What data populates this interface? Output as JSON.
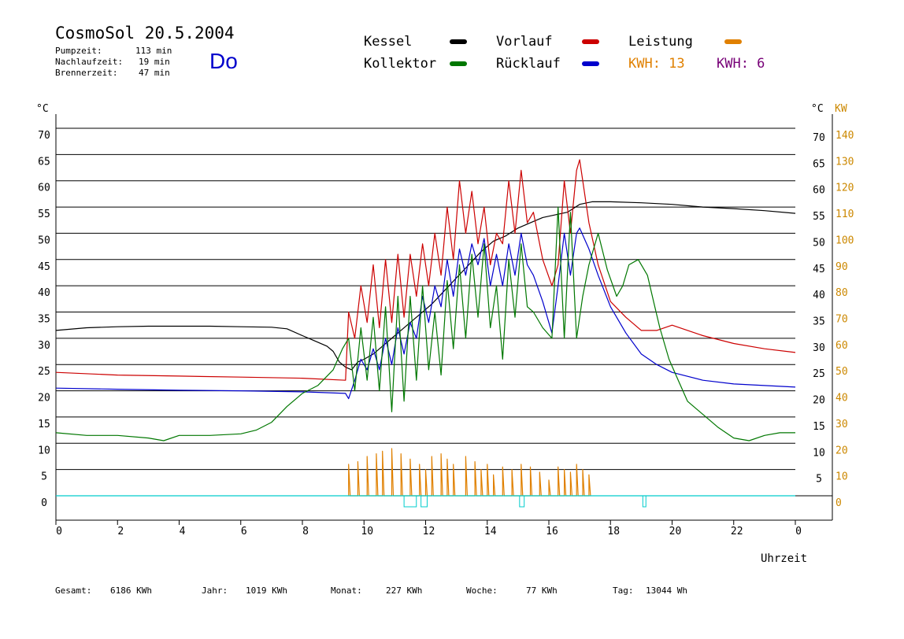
{
  "header": {
    "title": "CosmoSol 20.5.2004",
    "day": "Do",
    "stats": [
      {
        "label": "Pumpzeit:",
        "value": "113 min"
      },
      {
        "label": "Nachlaufzeit:",
        "value": "19 min"
      },
      {
        "label": "Brennerzeit:",
        "value": "47 min"
      }
    ]
  },
  "legend": {
    "kessel": "Kessel",
    "kollektor": "Kollektor",
    "vorlauf": "Vorlauf",
    "ruecklauf": "Rücklauf",
    "leistung": "Leistung",
    "kwh1": "KWH: 13",
    "kwh2": "KWH: 6"
  },
  "colors": {
    "kessel": "#000000",
    "kollektor": "#007700",
    "vorlauf": "#cc0000",
    "ruecklauf": "#0000cc",
    "leistung": "#e08000",
    "kwh2": "#770077",
    "pump": "#00cccc",
    "kw_axis": "#cc8800"
  },
  "footer": [
    {
      "label": "Gesamt:",
      "value": "6186 KWh"
    },
    {
      "label": "Jahr:",
      "value": "1019 KWh"
    },
    {
      "label": "Monat:",
      "value": "227 KWh"
    },
    {
      "label": "Woche:",
      "value": "77 KWh"
    },
    {
      "label": "Tag:",
      "value": "13044 Wh"
    }
  ],
  "chart_data": {
    "type": "line",
    "xlabel": "Uhrzeit",
    "ylabel_left": "°C",
    "ylabel_right": "°C",
    "ylabel_right2": "KW",
    "xlim": [
      0,
      24
    ],
    "ylim": [
      0,
      70
    ],
    "x_ticks": [
      "0",
      "2",
      "4",
      "6",
      "8",
      "10",
      "12",
      "14",
      "16",
      "18",
      "20",
      "22",
      "0"
    ],
    "y_ticks": [
      "0",
      "5",
      "10",
      "15",
      "20",
      "25",
      "30",
      "35",
      "40",
      "45",
      "50",
      "55",
      "60",
      "65",
      "70"
    ],
    "y_ticks_right": [
      "5",
      "10",
      "15",
      "20",
      "25",
      "30",
      "35",
      "40",
      "45",
      "50",
      "55",
      "60",
      "65",
      "70"
    ],
    "kw_ticks": [
      "0",
      "10",
      "20",
      "30",
      "40",
      "50",
      "60",
      "70",
      "80",
      "90",
      "100",
      "110",
      "120",
      "130",
      "140"
    ],
    "grid": true,
    "series": [
      {
        "name": "Kessel",
        "x": [
          0,
          1,
          2,
          3,
          4,
          5,
          6,
          7,
          7.5,
          8,
          8.4,
          8.8,
          9.0,
          9.2,
          9.4,
          9.6,
          9.8,
          10.0,
          10.3,
          10.6,
          11.0,
          11.4,
          11.8,
          12.2,
          12.6,
          13.0,
          13.4,
          13.8,
          14.2,
          14.6,
          15.0,
          15.4,
          15.8,
          16.2,
          16.6,
          17.0,
          17.4,
          18.0,
          19.0,
          20.0,
          21.0,
          22.0,
          23.0,
          24.0
        ],
        "y": [
          31.5,
          32,
          32.2,
          32.3,
          32.3,
          32.3,
          32.2,
          32.1,
          31.8,
          30.5,
          29.5,
          28.5,
          27.5,
          25.5,
          24.5,
          24.0,
          25.5,
          26.0,
          27.0,
          28.5,
          30.5,
          32.5,
          34.5,
          36.5,
          39.0,
          41.5,
          44.0,
          46.5,
          48.5,
          49.5,
          51.0,
          52.0,
          53.0,
          53.5,
          54.0,
          55.5,
          56.0,
          56.0,
          55.8,
          55.5,
          55.0,
          54.7,
          54.3,
          53.8
        ]
      },
      {
        "name": "Vorlauf",
        "x": [
          0,
          2,
          4,
          6,
          8,
          9.4,
          9.5,
          9.7,
          9.9,
          10.1,
          10.3,
          10.5,
          10.7,
          10.9,
          11.1,
          11.3,
          11.5,
          11.7,
          11.9,
          12.1,
          12.3,
          12.5,
          12.7,
          12.9,
          13.1,
          13.3,
          13.5,
          13.7,
          13.9,
          14.1,
          14.3,
          14.5,
          14.7,
          14.9,
          15.1,
          15.3,
          15.5,
          15.8,
          16.1,
          16.3,
          16.5,
          16.7,
          16.9,
          17.0,
          17.3,
          17.6,
          18.0,
          18.5,
          19.0,
          19.5,
          20.0,
          21.0,
          22.0,
          23.0,
          24.0
        ],
        "y": [
          23.5,
          23.0,
          22.8,
          22.6,
          22.4,
          22.0,
          35.0,
          30.0,
          40.0,
          33.0,
          44.0,
          32.0,
          45.0,
          33.0,
          46.0,
          34.0,
          46.0,
          38.0,
          48.0,
          40.0,
          50.0,
          42.0,
          55.0,
          45.0,
          60.0,
          50.0,
          58.0,
          48.0,
          55.0,
          44.0,
          50.0,
          48.0,
          60.0,
          50.0,
          62.0,
          52.0,
          54.0,
          45.0,
          40.0,
          44.0,
          60.0,
          50.0,
          62.0,
          64.0,
          52.0,
          44.0,
          37.0,
          34.0,
          31.5,
          31.5,
          32.5,
          30.5,
          29.0,
          28.0,
          27.3
        ]
      },
      {
        "name": "Rücklauf",
        "x": [
          0,
          2,
          4,
          6,
          8,
          9.4,
          9.5,
          9.7,
          9.9,
          10.1,
          10.3,
          10.5,
          10.7,
          10.9,
          11.1,
          11.3,
          11.5,
          11.7,
          11.9,
          12.1,
          12.3,
          12.5,
          12.7,
          12.9,
          13.1,
          13.3,
          13.5,
          13.7,
          13.9,
          14.1,
          14.3,
          14.5,
          14.7,
          14.9,
          15.1,
          15.3,
          15.5,
          15.8,
          16.1,
          16.3,
          16.5,
          16.7,
          16.9,
          17.0,
          17.3,
          17.6,
          18.0,
          18.5,
          19.0,
          19.5,
          20.0,
          21.0,
          22.0,
          23.0,
          24.0
        ],
        "y": [
          20.5,
          20.3,
          20.1,
          20.0,
          19.8,
          19.5,
          18.5,
          22.0,
          26.0,
          24.0,
          28.0,
          24.0,
          30.0,
          25.0,
          32.0,
          27.0,
          33.0,
          30.0,
          38.0,
          33.0,
          40.0,
          36.0,
          45.0,
          38.0,
          47.0,
          42.0,
          48.0,
          44.0,
          49.0,
          40.0,
          46.0,
          40.0,
          48.0,
          42.0,
          50.0,
          44.0,
          42.0,
          37.0,
          31.0,
          40.0,
          50.0,
          42.0,
          50.0,
          51.0,
          47.0,
          42.0,
          36.0,
          31.0,
          27.0,
          25.0,
          23.5,
          22.0,
          21.3,
          21.0,
          20.7
        ]
      },
      {
        "name": "Kollektor",
        "x": [
          0,
          1,
          2,
          3,
          3.5,
          4,
          5,
          6,
          6.5,
          7,
          7.5,
          8.0,
          8.5,
          9.0,
          9.3,
          9.5,
          9.7,
          9.9,
          10.1,
          10.3,
          10.5,
          10.7,
          10.9,
          11.1,
          11.3,
          11.5,
          11.7,
          11.9,
          12.1,
          12.3,
          12.5,
          12.7,
          12.9,
          13.1,
          13.3,
          13.5,
          13.7,
          13.9,
          14.1,
          14.3,
          14.5,
          14.7,
          14.9,
          15.1,
          15.3,
          15.5,
          15.8,
          16.1,
          16.3,
          16.5,
          16.7,
          16.9,
          17.1,
          17.3,
          17.6,
          17.9,
          18.2,
          18.4,
          18.6,
          18.9,
          19.2,
          19.4,
          19.6,
          19.9,
          20.2,
          20.5,
          21.0,
          21.5,
          22.0,
          22.5,
          23.0,
          23.5,
          24.0
        ],
        "y": [
          12.0,
          11.5,
          11.5,
          11.0,
          10.5,
          11.5,
          11.5,
          11.8,
          12.5,
          14.0,
          17.0,
          19.5,
          21.0,
          24.0,
          28.0,
          30.0,
          20.0,
          32.0,
          22.0,
          34.0,
          20.0,
          36.0,
          16.0,
          38.0,
          18.0,
          38.0,
          22.0,
          40.0,
          24.0,
          35.0,
          23.0,
          41.0,
          28.0,
          44.0,
          30.0,
          46.0,
          34.0,
          48.0,
          32.0,
          40.0,
          26.0,
          45.0,
          34.0,
          48.0,
          36.0,
          35.0,
          32.0,
          30.0,
          55.0,
          30.0,
          54.0,
          30.0,
          38.0,
          44.0,
          50.0,
          43.0,
          38.0,
          40.0,
          44.0,
          45.0,
          42.0,
          37.0,
          32.0,
          26.0,
          22.0,
          18.0,
          15.5,
          13.0,
          11.0,
          10.5,
          11.5,
          12.0,
          12.0
        ]
      },
      {
        "name": "Leistung",
        "unit": "KW",
        "x": [
          9.5,
          9.8,
          10.1,
          10.4,
          10.6,
          10.9,
          11.2,
          11.5,
          11.8,
          12.0,
          12.2,
          12.5,
          12.7,
          12.9,
          13.3,
          13.6,
          13.8,
          14.0,
          14.2,
          14.5,
          14.8,
          15.1,
          15.4,
          15.7,
          16.0,
          16.3,
          16.5,
          16.7,
          16.9,
          17.1,
          17.3
        ],
        "y": [
          12,
          13,
          15,
          16,
          17,
          18,
          16,
          14,
          12,
          10,
          15,
          16,
          14,
          12,
          15,
          13,
          10,
          12,
          8,
          11,
          10,
          12,
          11,
          9,
          6,
          11,
          10,
          9,
          12,
          10,
          8
        ]
      }
    ]
  }
}
